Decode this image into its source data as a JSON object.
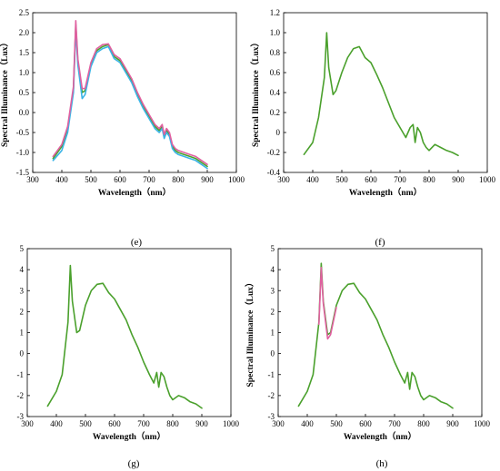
{
  "chart_data": [
    {
      "type": "line",
      "panel_label": "(e)",
      "xlabel": "Wavelength（nm）",
      "ylabel": "Spectral Illuminance（Lux）",
      "xlim": [
        300,
        1000
      ],
      "ylim": [
        -1.5,
        2.5
      ],
      "xticks": [
        "300",
        "400",
        "500",
        "600",
        "700",
        "800",
        "900",
        "1000"
      ],
      "yticks": [
        "-1.5",
        "-1.0",
        "-0.5",
        "0.0",
        "0.5",
        "1.0",
        "1.5",
        "2.0",
        "2.5"
      ],
      "grid": false,
      "series": [
        {
          "color": "#4aa02c",
          "x": [
            370,
            400,
            420,
            440,
            448,
            455,
            470,
            480,
            500,
            520,
            540,
            560,
            580,
            600,
            620,
            640,
            660,
            680,
            700,
            720,
            735,
            745,
            752,
            760,
            770,
            780,
            790,
            800,
            820,
            840,
            860,
            880,
            900
          ],
          "y": [
            -1.15,
            -0.85,
            -0.4,
            0.6,
            2.2,
            1.3,
            0.5,
            0.55,
            1.2,
            1.55,
            1.65,
            1.7,
            1.4,
            1.3,
            1.05,
            0.8,
            0.45,
            0.15,
            -0.1,
            -0.35,
            -0.45,
            -0.35,
            -0.6,
            -0.45,
            -0.55,
            -0.85,
            -0.95,
            -1.0,
            -1.05,
            -1.1,
            -1.15,
            -1.25,
            -1.35
          ]
        },
        {
          "color": "#3bb4e6",
          "x": [
            370,
            400,
            420,
            440,
            448,
            455,
            470,
            480,
            500,
            520,
            540,
            560,
            580,
            600,
            620,
            640,
            660,
            680,
            700,
            720,
            735,
            745,
            752,
            760,
            770,
            780,
            790,
            800,
            820,
            840,
            860,
            880,
            900
          ],
          "y": [
            -1.2,
            -0.95,
            -0.5,
            0.5,
            2.1,
            1.2,
            0.35,
            0.45,
            1.15,
            1.5,
            1.6,
            1.65,
            1.35,
            1.25,
            1.0,
            0.75,
            0.4,
            0.1,
            -0.15,
            -0.4,
            -0.5,
            -0.4,
            -0.65,
            -0.5,
            -0.6,
            -0.9,
            -1.0,
            -1.05,
            -1.1,
            -1.15,
            -1.2,
            -1.3,
            -1.4
          ]
        },
        {
          "color": "#e060a0",
          "x": [
            370,
            400,
            420,
            440,
            448,
            455,
            470,
            480,
            500,
            520,
            540,
            560,
            580,
            600,
            620,
            640,
            660,
            680,
            700,
            720,
            735,
            745,
            752,
            760,
            770,
            780,
            790,
            800,
            820,
            840,
            860,
            880,
            900
          ],
          "y": [
            -1.1,
            -0.8,
            -0.35,
            0.65,
            2.3,
            1.35,
            0.6,
            0.6,
            1.25,
            1.6,
            1.7,
            1.72,
            1.45,
            1.35,
            1.1,
            0.85,
            0.5,
            0.2,
            -0.05,
            -0.3,
            -0.4,
            -0.3,
            -0.55,
            -0.4,
            -0.5,
            -0.8,
            -0.9,
            -0.95,
            -1.0,
            -1.05,
            -1.1,
            -1.2,
            -1.3
          ]
        }
      ]
    },
    {
      "type": "line",
      "panel_label": "(f)",
      "xlabel": "Wavelength（nm）",
      "ylabel": "Spectral Illuminance（Lux）",
      "xlim": [
        300,
        1000
      ],
      "ylim": [
        -0.4,
        1.2
      ],
      "xticks": [
        "300",
        "400",
        "500",
        "600",
        "700",
        "800",
        "900",
        "1000"
      ],
      "yticks": [
        "-0.4",
        "-0.2",
        "0",
        "0.2",
        "0.4",
        "0.6",
        "0.8",
        "1.0",
        "1.2"
      ],
      "grid": false,
      "series": [
        {
          "color": "#4aa02c",
          "x": [
            370,
            400,
            420,
            440,
            448,
            455,
            470,
            480,
            500,
            520,
            540,
            560,
            580,
            600,
            620,
            640,
            660,
            680,
            700,
            720,
            735,
            745,
            752,
            760,
            770,
            780,
            790,
            800,
            820,
            840,
            860,
            880,
            900
          ],
          "y": [
            -0.22,
            -0.1,
            0.15,
            0.55,
            1.0,
            0.65,
            0.38,
            0.42,
            0.6,
            0.75,
            0.84,
            0.86,
            0.75,
            0.7,
            0.58,
            0.45,
            0.3,
            0.15,
            0.05,
            -0.05,
            0.05,
            0.08,
            -0.1,
            0.05,
            0.0,
            -0.1,
            -0.15,
            -0.18,
            -0.12,
            -0.15,
            -0.18,
            -0.2,
            -0.23
          ]
        }
      ]
    },
    {
      "type": "line",
      "panel_label": "(g)",
      "xlabel": "Wavelength（nm）",
      "ylabel": "",
      "xlim": [
        300,
        1000
      ],
      "ylim": [
        -3,
        5
      ],
      "xticks": [
        "300",
        "400",
        "500",
        "600",
        "700",
        "800",
        "900",
        "1000"
      ],
      "yticks": [
        "-3",
        "-2",
        "-1",
        "0",
        "1",
        "2",
        "3",
        "4",
        "5"
      ],
      "grid": false,
      "series": [
        {
          "color": "#4aa02c",
          "x": [
            370,
            400,
            420,
            440,
            448,
            455,
            470,
            480,
            500,
            520,
            540,
            560,
            580,
            600,
            620,
            640,
            660,
            680,
            700,
            720,
            735,
            745,
            752,
            760,
            770,
            780,
            790,
            800,
            820,
            840,
            860,
            880,
            900
          ],
          "y": [
            -2.5,
            -1.8,
            -1.0,
            1.5,
            4.2,
            2.5,
            1.0,
            1.1,
            2.3,
            3.0,
            3.3,
            3.35,
            2.9,
            2.6,
            2.1,
            1.6,
            0.9,
            0.3,
            -0.4,
            -1.0,
            -1.4,
            -0.9,
            -1.6,
            -0.9,
            -1.1,
            -1.6,
            -2.0,
            -2.2,
            -2.0,
            -2.1,
            -2.3,
            -2.4,
            -2.6
          ]
        }
      ]
    },
    {
      "type": "line",
      "panel_label": "(h)",
      "xlabel": "Wavelength（nm）",
      "ylabel": "Spectral Illuminance（Lux）",
      "xlim": [
        300,
        1000
      ],
      "ylim": [
        -3,
        5
      ],
      "xticks": [
        "300",
        "400",
        "500",
        "600",
        "700",
        "800",
        "900",
        "1000"
      ],
      "yticks": [
        "-3",
        "-2",
        "-1",
        "0",
        "1",
        "2",
        "3",
        "4",
        "5"
      ],
      "grid": false,
      "series": [
        {
          "color": "#4aa02c",
          "x": [
            370,
            400,
            420,
            440,
            448,
            455,
            470,
            480,
            500,
            520,
            540,
            560,
            580,
            600,
            620,
            640,
            660,
            680,
            700,
            720,
            735,
            745,
            752,
            760,
            770,
            780,
            790,
            800,
            820,
            840,
            860,
            880,
            900
          ],
          "y": [
            -2.5,
            -1.8,
            -1.0,
            1.5,
            4.3,
            2.5,
            0.9,
            1.0,
            2.3,
            3.0,
            3.3,
            3.35,
            2.9,
            2.6,
            2.1,
            1.6,
            0.9,
            0.3,
            -0.4,
            -1.0,
            -1.4,
            -0.9,
            -1.7,
            -0.9,
            -1.1,
            -1.6,
            -2.0,
            -2.2,
            -2.0,
            -2.1,
            -2.3,
            -2.4,
            -2.6
          ]
        },
        {
          "color": "#e060a0",
          "x": [
            440,
            448,
            455,
            470,
            480,
            500
          ],
          "y": [
            1.4,
            4.1,
            2.4,
            0.7,
            0.9,
            2.2
          ]
        }
      ]
    }
  ]
}
